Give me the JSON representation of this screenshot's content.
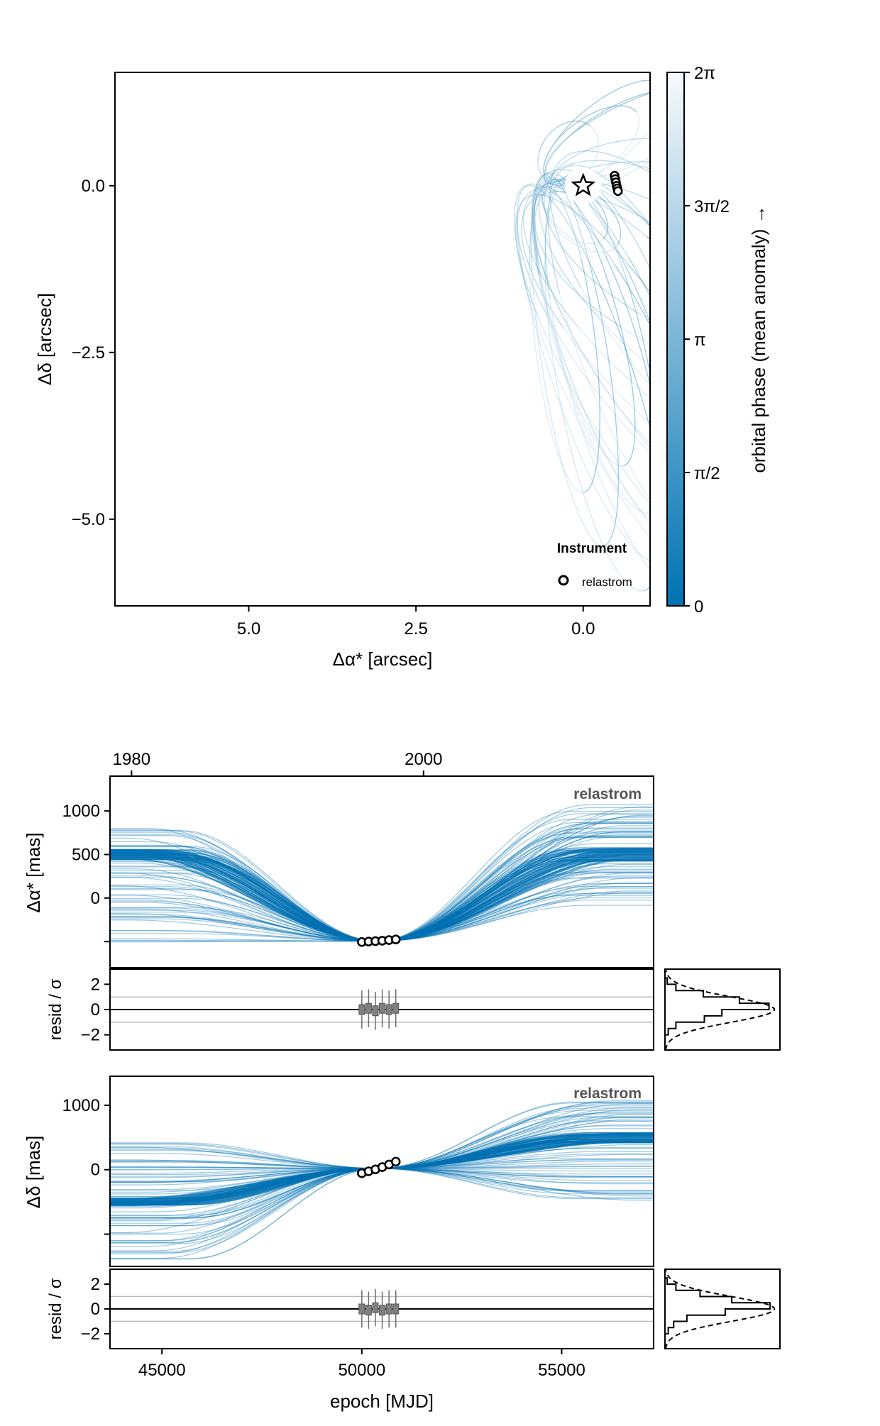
{
  "colors": {
    "model": "#0072b2",
    "colorbar_low": "#0072b2",
    "colorbar_high": "#f7fafc",
    "data_marker": "#000000",
    "residual_marker": "#808080"
  },
  "chart_data": [
    {
      "id": "sky",
      "type": "scatter",
      "title": "",
      "xlabel": "Δα* [arcsec]",
      "ylabel": "Δδ [arcsec]",
      "xlim": [
        7.0,
        -1.0
      ],
      "ylim": [
        -6.3,
        1.7
      ],
      "x_reversed": true,
      "xticks": [
        5.0,
        2.5,
        0.0
      ],
      "xtick_labels": [
        "5.0",
        "2.5",
        "0.0"
      ],
      "yticks": [
        0.0,
        -2.5,
        -5.0
      ],
      "ytick_labels": [
        "0.0",
        "−2.5",
        "−5.0"
      ],
      "star_position": [
        0.0,
        0.0
      ],
      "star_icon": "star-outline-icon",
      "observations": [
        {
          "x": -0.47,
          "y": 0.15
        },
        {
          "x": -0.48,
          "y": 0.1
        },
        {
          "x": -0.49,
          "y": 0.05
        },
        {
          "x": -0.5,
          "y": 0.0
        },
        {
          "x": -0.51,
          "y": -0.04
        },
        {
          "x": -0.52,
          "y": -0.08
        }
      ],
      "legend": {
        "title": "Instrument",
        "entries": [
          "relastrom"
        ],
        "position": "bottom-right"
      },
      "colorbar": {
        "label": "orbital phase (mean anomaly) →",
        "ticks": [
          "0",
          "π/2",
          "π",
          "3π/2",
          "2π"
        ],
        "range": [
          0,
          6.283
        ]
      },
      "orbit_samples": [
        {
          "far": [
            -6.8,
            -2.4
          ],
          "width": 1.6,
          "tilt": 0.0
        },
        {
          "far": [
            -5.9,
            -3.0
          ],
          "width": 1.5,
          "tilt": 0.1
        },
        {
          "far": [
            -5.2,
            -4.0
          ],
          "width": 1.4,
          "tilt": 0.0
        },
        {
          "far": [
            -4.6,
            -4.8
          ],
          "width": 1.3,
          "tilt": 0.1
        },
        {
          "far": [
            -4.2,
            -4.4
          ],
          "width": 1.2,
          "tilt": -0.1
        },
        {
          "far": [
            -3.8,
            -5.0
          ],
          "width": 1.2,
          "tilt": 0.1
        },
        {
          "far": [
            -3.4,
            -5.4
          ],
          "width": 1.1,
          "tilt": 0.0
        },
        {
          "far": [
            -3.0,
            -5.3
          ],
          "width": 1.1,
          "tilt": 0.1
        },
        {
          "far": [
            -2.8,
            -5.8
          ],
          "width": 1.0,
          "tilt": -0.1
        },
        {
          "far": [
            -2.5,
            -4.6
          ],
          "width": 1.0,
          "tilt": 0.0
        },
        {
          "far": [
            -2.2,
            -5.9
          ],
          "width": 0.9,
          "tilt": 0.1
        },
        {
          "far": [
            -2.0,
            -6.1
          ],
          "width": 0.9,
          "tilt": -0.1
        },
        {
          "far": [
            -1.8,
            -5.6
          ],
          "width": 0.8,
          "tilt": 0.0
        },
        {
          "far": [
            -1.6,
            -6.0
          ],
          "width": 0.8,
          "tilt": 0.1
        },
        {
          "far": [
            -1.4,
            -5.2
          ],
          "width": 0.7,
          "tilt": 0.0
        },
        {
          "far": [
            -1.2,
            -6.0
          ],
          "width": 0.7,
          "tilt": -0.1
        },
        {
          "far": [
            -1.0,
            -4.9
          ],
          "width": 0.6,
          "tilt": 0.0
        },
        {
          "far": [
            -0.8,
            -5.7
          ],
          "width": 0.6,
          "tilt": 0.1
        },
        {
          "far": [
            -0.6,
            -4.2
          ],
          "width": 0.5,
          "tilt": 0.0
        },
        {
          "far": [
            -0.3,
            -5.4
          ],
          "width": 0.5,
          "tilt": 0.0
        },
        {
          "far": [
            0.0,
            -4.6
          ],
          "width": 0.45,
          "tilt": 0.0
        },
        {
          "far": [
            -1.6,
            1.3
          ],
          "width": 0.5,
          "tilt": 0.0
        },
        {
          "far": [
            -1.2,
            1.5
          ],
          "width": 0.45,
          "tilt": 0.0
        },
        {
          "far": [
            -0.8,
            1.1
          ],
          "width": 0.4,
          "tilt": 0.0
        },
        {
          "far": [
            -2.0,
            1.4
          ],
          "width": 0.45,
          "tilt": 0.0
        },
        {
          "far": [
            -0.5,
            -0.9
          ],
          "width": 0.4,
          "tilt": 0.0
        },
        {
          "far": [
            -0.3,
            -0.8
          ],
          "width": 0.35,
          "tilt": 0.0
        },
        {
          "far": [
            -0.1,
            0.9
          ],
          "width": 0.4,
          "tilt": 0.0
        }
      ]
    },
    {
      "id": "ra-timeseries",
      "type": "line",
      "ylabel": "Δα* [mas]",
      "xlim": [
        43700,
        57300
      ],
      "ylim": [
        -800,
        1400
      ],
      "yticks": [
        1000,
        500,
        0,
        -500
      ],
      "ytick_labels": [
        "1000",
        "500",
        "0",
        ""
      ],
      "top_axis_ticks": [
        1980,
        2000
      ],
      "top_axis_tick_mjd": [
        44239.0,
        51544.0
      ],
      "instrument_label": "relastrom",
      "observations": [
        {
          "x": 50000,
          "y": -505
        },
        {
          "x": 50170,
          "y": -500
        },
        {
          "x": 50340,
          "y": -495
        },
        {
          "x": 50510,
          "y": -490
        },
        {
          "x": 50680,
          "y": -483
        },
        {
          "x": 50850,
          "y": -476
        }
      ],
      "model_anchor": {
        "x": 50400,
        "y": -495
      },
      "model_band_left": {
        "x": 43700,
        "min": -520,
        "max": 800
      },
      "model_band_right": {
        "x": 57300,
        "min": -100,
        "max": 1120
      },
      "dense_level_left": 500,
      "dense_level_right": 500
    },
    {
      "id": "ra-residuals",
      "type": "scatter",
      "ylabel": "resid / σ",
      "xlim": [
        43700,
        57300
      ],
      "ylim": [
        -3.2,
        3.2
      ],
      "yticks": [
        2,
        0,
        -2
      ],
      "ytick_labels": [
        "2",
        "0",
        "−2"
      ],
      "reference_lines": [
        1,
        0,
        -1
      ],
      "points": [
        {
          "x": 50000,
          "y": 0.0,
          "err": 1.5
        },
        {
          "x": 50170,
          "y": 0.1,
          "err": 1.5
        },
        {
          "x": 50340,
          "y": -0.1,
          "err": 1.5
        },
        {
          "x": 50510,
          "y": 0.1,
          "err": 1.5
        },
        {
          "x": 50680,
          "y": 0.0,
          "err": 1.5
        },
        {
          "x": 50850,
          "y": 0.1,
          "err": 1.5
        }
      ]
    },
    {
      "id": "ra-residual-histogram",
      "type": "bar",
      "orientation": "horizontal",
      "ylim": [
        -3.2,
        3.2
      ],
      "bin_edges": [
        -3,
        -2.5,
        -2,
        -1.5,
        -1,
        -0.5,
        0,
        0.5,
        1,
        1.5,
        2,
        2.5,
        3
      ],
      "counts": [
        0.0,
        0.0,
        0.03,
        0.1,
        0.36,
        0.52,
        0.95,
        0.68,
        0.35,
        0.1,
        0.02,
        0.0
      ],
      "reference_curve": "standard normal"
    },
    {
      "id": "dec-timeseries",
      "type": "line",
      "ylabel": "Δδ [mas]",
      "xlim": [
        43700,
        57300
      ],
      "ylim": [
        -1500,
        1450
      ],
      "yticks": [
        1000,
        0,
        -1000
      ],
      "ytick_labels": [
        "1000",
        "0",
        ""
      ],
      "instrument_label": "relastrom",
      "observations": [
        {
          "x": 50000,
          "y": -55
        },
        {
          "x": 50170,
          "y": -25
        },
        {
          "x": 50340,
          "y": 5
        },
        {
          "x": 50510,
          "y": 40
        },
        {
          "x": 50680,
          "y": 80
        },
        {
          "x": 50850,
          "y": 125
        }
      ],
      "model_anchor": {
        "x": 50400,
        "y": 20
      },
      "model_band_left": {
        "x": 43700,
        "min": -1400,
        "max": 450
      },
      "model_band_right": {
        "x": 57300,
        "min": -500,
        "max": 1100
      },
      "dense_level_left": -500,
      "dense_level_right": 500
    },
    {
      "id": "dec-residuals",
      "type": "scatter",
      "ylabel": "resid / σ",
      "xlabel": "epoch [MJD]",
      "xlim": [
        43700,
        57300
      ],
      "ylim": [
        -3.2,
        3.2
      ],
      "xticks": [
        45000,
        50000,
        55000
      ],
      "xtick_labels": [
        "45000",
        "50000",
        "55000"
      ],
      "yticks": [
        2,
        0,
        -2
      ],
      "ytick_labels": [
        "2",
        "0",
        "−2"
      ],
      "reference_lines": [
        1,
        0,
        -1
      ],
      "points": [
        {
          "x": 50000,
          "y": 0.0,
          "err": 1.5
        },
        {
          "x": 50170,
          "y": -0.1,
          "err": 1.5
        },
        {
          "x": 50340,
          "y": 0.1,
          "err": 1.5
        },
        {
          "x": 50510,
          "y": -0.1,
          "err": 1.5
        },
        {
          "x": 50680,
          "y": 0.0,
          "err": 1.5
        },
        {
          "x": 50850,
          "y": 0.0,
          "err": 1.5
        }
      ]
    },
    {
      "id": "dec-residual-histogram",
      "type": "bar",
      "orientation": "horizontal",
      "ylim": [
        -3.2,
        3.2
      ],
      "bin_edges": [
        -3,
        -2.5,
        -2,
        -1.5,
        -1,
        -0.5,
        0,
        0.5,
        1,
        1.5,
        2,
        2.5,
        3
      ],
      "counts": [
        0.0,
        0.0,
        0.03,
        0.08,
        0.2,
        0.55,
        0.96,
        0.61,
        0.32,
        0.1,
        0.02,
        0.0
      ],
      "reference_curve": "standard normal"
    }
  ]
}
